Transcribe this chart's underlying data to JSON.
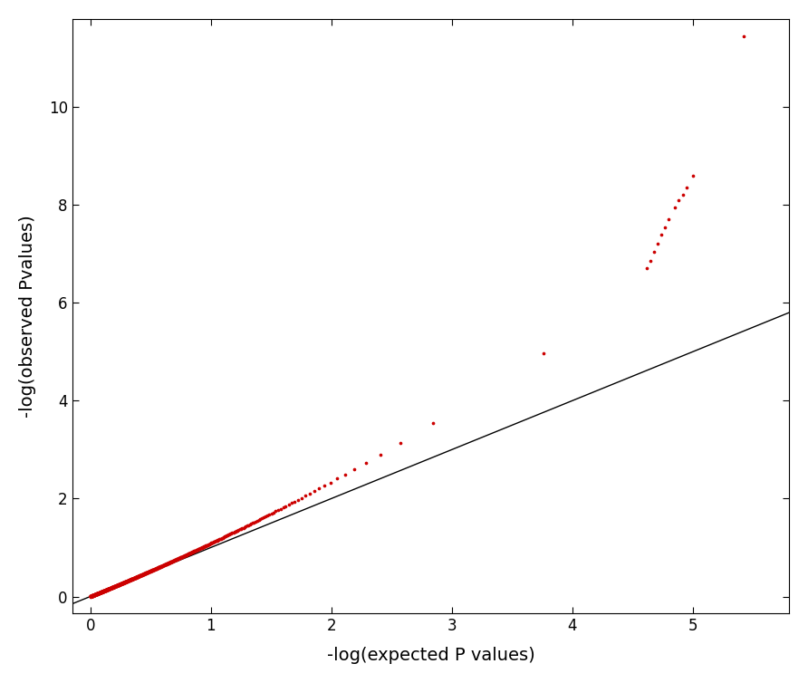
{
  "title": "",
  "xlabel": "-log(expected P values)",
  "ylabel": "-log(observed Pvalues)",
  "xlim": [
    -0.15,
    5.8
  ],
  "ylim": [
    -0.35,
    11.8
  ],
  "xticks": [
    0,
    1,
    2,
    3,
    4,
    5
  ],
  "yticks": [
    0,
    2,
    4,
    6,
    8,
    10
  ],
  "dot_color": "#cc0000",
  "line_color": "#000000",
  "background_color": "#ffffff",
  "dot_size": 7,
  "line_width": 1.0,
  "fig_width": 8.92,
  "fig_height": 7.54,
  "tail_x": [
    4.62,
    4.65,
    4.68,
    4.71,
    4.74,
    4.77,
    4.8,
    4.85,
    4.88,
    4.92,
    4.95,
    5.0,
    5.42
  ],
  "tail_y": [
    6.7,
    6.85,
    7.05,
    7.2,
    7.4,
    7.55,
    7.7,
    7.95,
    8.1,
    8.2,
    8.35,
    8.6,
    11.45
  ]
}
